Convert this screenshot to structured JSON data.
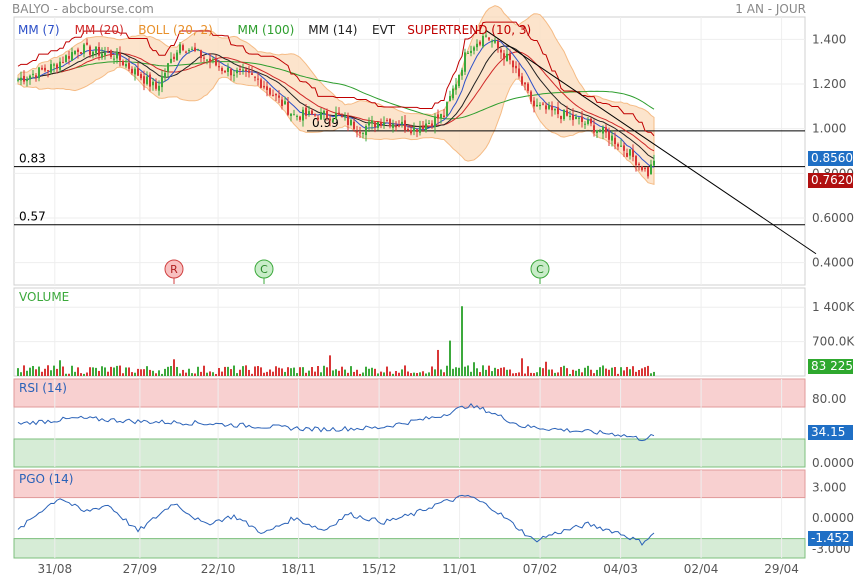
{
  "header": {
    "title": "BALYO - abcbourse.com",
    "period": "1 AN - JOUR"
  },
  "x_axis": {
    "dates": [
      "31/08",
      "27/09",
      "22/10",
      "18/11",
      "15/12",
      "11/01",
      "07/02",
      "04/03",
      "02/04",
      "29/04"
    ]
  },
  "colors": {
    "up": "#3ca93c",
    "down": "#d93636",
    "mm7": "#2d50c8",
    "mm20": "#d02828",
    "mm100": "#2e9e2e",
    "mm14": "#222222",
    "boll_fill": "#fce0c4",
    "boll_line": "#f4b070",
    "supertrend": "#c00000",
    "line": "#000000",
    "osc": "#2a62b8",
    "overbought": "#f8d0d0",
    "oversold": "#d6ecd6",
    "last_price": "#1f6fc5",
    "prev_price": "#b01010",
    "volume_badge": "#2ea82e"
  },
  "price_panel": {
    "legend": {
      "mm7": "MM (7)",
      "mm20": "MM (20)",
      "boll": "BOLL (20, 2)",
      "mm100": "MM (100)",
      "mm14": "MM (14)",
      "evt": "EVT",
      "supertrend": "SUPERTREND (10, 3)"
    },
    "y_ticks": [
      "1.400",
      "1.200",
      "1.000",
      "0.8000",
      "0.6000",
      "0.4000"
    ],
    "hlines": [
      {
        "label": "0.99",
        "value": 0.99
      },
      {
        "label": "0.83",
        "value": 0.83
      },
      {
        "label": "0.57",
        "value": 0.57
      }
    ],
    "last_price": "0.8560",
    "prev_price": "0.7620",
    "events": [
      {
        "label": "R",
        "date_index": 50
      },
      {
        "label": "C",
        "date_index": 80
      },
      {
        "label": "C",
        "date_index": 172
      }
    ]
  },
  "volume_panel": {
    "title": "VOLUME",
    "y_ticks": [
      "1 400K",
      "700.0K"
    ],
    "last_value": "83 225"
  },
  "rsi_panel": {
    "title": "RSI (14)",
    "y_ticks": [
      "80.00",
      "0.0000"
    ],
    "last_value": "34.15"
  },
  "pgo_panel": {
    "title": "PGO (14)",
    "y_ticks": [
      "3.000",
      "0.0000",
      "-3.000"
    ],
    "last_value": "-1.452"
  },
  "chart_data": [
    {
      "type": "candlestick",
      "ylim": [
        0.3,
        1.5
      ],
      "series": [
        {
          "name": "SUPERTREND (10, 3)"
        }
      ],
      "anchors": [
        {
          "i": 0,
          "close": 1.22
        },
        {
          "i": 12,
          "close": 1.28
        },
        {
          "i": 20,
          "close": 1.36
        },
        {
          "i": 32,
          "close": 1.33
        },
        {
          "i": 46,
          "close": 1.18
        },
        {
          "i": 54,
          "close": 1.38
        },
        {
          "i": 68,
          "close": 1.27
        },
        {
          "i": 80,
          "close": 1.22
        },
        {
          "i": 92,
          "close": 1.06
        },
        {
          "i": 106,
          "close": 1.06
        },
        {
          "i": 114,
          "close": 1.0
        },
        {
          "i": 122,
          "close": 1.04
        },
        {
          "i": 132,
          "close": 1.0
        },
        {
          "i": 142,
          "close": 1.06
        },
        {
          "i": 150,
          "close": 1.36
        },
        {
          "i": 156,
          "close": 1.42
        },
        {
          "i": 164,
          "close": 1.3
        },
        {
          "i": 172,
          "close": 1.1
        },
        {
          "i": 182,
          "close": 1.06
        },
        {
          "i": 190,
          "close": 1.02
        },
        {
          "i": 198,
          "close": 0.96
        },
        {
          "i": 206,
          "close": 0.86
        },
        {
          "i": 210,
          "close": 0.8
        },
        {
          "i": 212,
          "close": 0.856
        }
      ],
      "trendlines": [
        {
          "from": {
            "i": 156,
            "value": 1.44
          },
          "to": {
            "i": 266,
            "value": 0.44
          }
        }
      ]
    },
    {
      "type": "bar",
      "title": "VOLUME",
      "ylim": [
        0,
        1750000
      ],
      "spikes": [
        {
          "i": 14,
          "value": 320000
        },
        {
          "i": 52,
          "value": 340000
        },
        {
          "i": 104,
          "value": 420000
        },
        {
          "i": 140,
          "value": 530000
        },
        {
          "i": 144,
          "value": 720000
        },
        {
          "i": 148,
          "value": 1420000
        },
        {
          "i": 152,
          "value": 280000
        },
        {
          "i": 168,
          "value": 360000
        },
        {
          "i": 176,
          "value": 290000
        }
      ],
      "last_value": 83225
    },
    {
      "type": "line",
      "title": "RSI (14)",
      "ylim": [
        0,
        100
      ],
      "zones": {
        "overbought": 70,
        "oversold": 30
      },
      "anchors": [
        {
          "i": 0,
          "value": 49
        },
        {
          "i": 20,
          "value": 56
        },
        {
          "i": 40,
          "value": 52
        },
        {
          "i": 60,
          "value": 50
        },
        {
          "i": 80,
          "value": 46
        },
        {
          "i": 100,
          "value": 42
        },
        {
          "i": 120,
          "value": 44
        },
        {
          "i": 140,
          "value": 58
        },
        {
          "i": 150,
          "value": 72
        },
        {
          "i": 156,
          "value": 66
        },
        {
          "i": 168,
          "value": 46
        },
        {
          "i": 180,
          "value": 42
        },
        {
          "i": 200,
          "value": 36
        },
        {
          "i": 208,
          "value": 30
        },
        {
          "i": 212,
          "value": 34.15
        }
      ],
      "last_value": 34.15
    },
    {
      "type": "line",
      "title": "PGO (14)",
      "ylim": [
        -3.5,
        4.3
      ],
      "zones": {
        "overbought": 2,
        "oversold": -2
      },
      "anchors": [
        {
          "i": 0,
          "value": -1.2
        },
        {
          "i": 8,
          "value": 0.8
        },
        {
          "i": 14,
          "value": 2.0
        },
        {
          "i": 22,
          "value": 0.6
        },
        {
          "i": 30,
          "value": 1.3
        },
        {
          "i": 40,
          "value": -1.3
        },
        {
          "i": 52,
          "value": 1.5
        },
        {
          "i": 62,
          "value": -0.6
        },
        {
          "i": 72,
          "value": 0.2
        },
        {
          "i": 82,
          "value": -1.5
        },
        {
          "i": 92,
          "value": 0.0
        },
        {
          "i": 102,
          "value": -1.2
        },
        {
          "i": 110,
          "value": 0.4
        },
        {
          "i": 122,
          "value": -0.4
        },
        {
          "i": 132,
          "value": 0.4
        },
        {
          "i": 140,
          "value": 1.4
        },
        {
          "i": 150,
          "value": 2.2
        },
        {
          "i": 158,
          "value": 1.0
        },
        {
          "i": 166,
          "value": -0.8
        },
        {
          "i": 172,
          "value": -2.2
        },
        {
          "i": 180,
          "value": -1.4
        },
        {
          "i": 190,
          "value": -0.6
        },
        {
          "i": 200,
          "value": -1.4
        },
        {
          "i": 208,
          "value": -2.4
        },
        {
          "i": 212,
          "value": -1.452
        }
      ],
      "last_value": -1.452
    }
  ]
}
